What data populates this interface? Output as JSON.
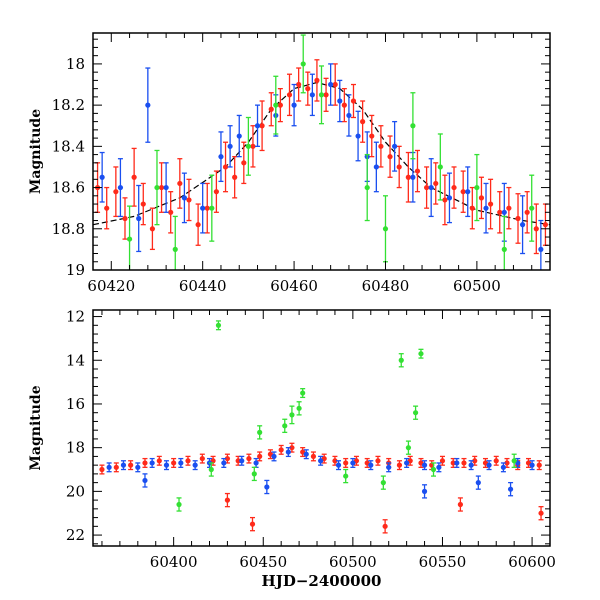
{
  "chart_data": [
    {
      "type": "scatter",
      "title": "",
      "xlabel": "",
      "ylabel": "Magnitude",
      "xlim": [
        60416,
        60516
      ],
      "ylim": [
        19.0,
        17.85
      ],
      "y_inverted": true,
      "grid": false,
      "legend": "none",
      "x_ticks": [
        60420,
        60440,
        60460,
        60480,
        60500
      ],
      "y_ticks": [
        18.0,
        18.2,
        18.4,
        18.6,
        18.8,
        19.0
      ],
      "x_tick_labels": [
        "60420",
        "60440",
        "60460",
        "60480",
        "60500"
      ],
      "y_tick_labels": [
        "18",
        "18.2",
        "18.4",
        "18.6",
        "18.8",
        "19"
      ],
      "model_curve": {
        "color": "#000000",
        "style": "dashed",
        "x": [
          60416,
          60425,
          60435,
          60445,
          60450,
          60455,
          60460,
          60465,
          60470,
          60475,
          60480,
          60485,
          60490,
          60500,
          60510,
          60516
        ],
        "y": [
          18.78,
          18.74,
          18.65,
          18.5,
          18.38,
          18.22,
          18.12,
          18.09,
          18.12,
          18.22,
          18.38,
          18.5,
          18.6,
          18.71,
          18.76,
          18.78
        ]
      },
      "series": [
        {
          "color": "#ff2a1a",
          "x": [
            60417,
            60419,
            60421,
            60423,
            60425,
            60427,
            60429,
            60431,
            60433,
            60435,
            60437,
            60439,
            60441,
            60443,
            60445,
            60447,
            60449,
            60451,
            60453,
            60455,
            60457,
            60459,
            60461,
            60463,
            60465,
            60467,
            60469,
            60471,
            60473,
            60475,
            60477,
            60479,
            60481,
            60483,
            60485,
            60487,
            60489,
            60491,
            60493,
            60495,
            60497,
            60499,
            60501,
            60503,
            60505,
            60507,
            60509,
            60511,
            60513,
            60515
          ],
          "y": [
            18.6,
            18.7,
            18.62,
            18.75,
            18.55,
            18.68,
            18.8,
            18.6,
            18.72,
            18.58,
            18.66,
            18.78,
            18.7,
            18.62,
            18.5,
            18.55,
            18.48,
            18.4,
            18.3,
            18.22,
            18.2,
            18.15,
            18.1,
            18.12,
            18.08,
            18.15,
            18.1,
            18.2,
            18.18,
            18.28,
            18.35,
            18.4,
            18.45,
            18.5,
            18.55,
            18.52,
            18.6,
            18.58,
            18.66,
            18.6,
            18.62,
            18.7,
            18.65,
            18.68,
            18.72,
            18.7,
            18.75,
            18.72,
            18.8,
            18.78
          ],
          "err": [
            0.12,
            0.1,
            0.12,
            0.1,
            0.14,
            0.1,
            0.1,
            0.12,
            0.1,
            0.12,
            0.1,
            0.1,
            0.12,
            0.1,
            0.12,
            0.1,
            0.1,
            0.1,
            0.12,
            0.08,
            0.08,
            0.1,
            0.08,
            0.08,
            0.1,
            0.08,
            0.1,
            0.08,
            0.08,
            0.1,
            0.1,
            0.1,
            0.1,
            0.1,
            0.12,
            0.1,
            0.1,
            0.1,
            0.12,
            0.1,
            0.1,
            0.1,
            0.1,
            0.12,
            0.1,
            0.1,
            0.12,
            0.1,
            0.12,
            0.1
          ]
        },
        {
          "color": "#1a4ff0",
          "x": [
            60418,
            60422,
            60426,
            60428,
            60432,
            60436,
            60440,
            60444,
            60446,
            60448,
            60452,
            60456,
            60460,
            60464,
            60468,
            60470,
            60472,
            60474,
            60476,
            60478,
            60482,
            60486,
            60490,
            60494,
            60498,
            60502,
            60506,
            60510,
            60514
          ],
          "y": [
            18.55,
            18.6,
            18.75,
            18.2,
            18.6,
            18.65,
            18.7,
            18.45,
            18.4,
            18.35,
            18.3,
            18.25,
            18.2,
            18.15,
            18.1,
            18.18,
            18.25,
            18.35,
            18.45,
            18.5,
            18.4,
            18.55,
            18.6,
            18.65,
            18.62,
            18.7,
            18.72,
            18.78,
            18.9
          ],
          "err": [
            0.12,
            0.14,
            0.16,
            0.18,
            0.12,
            0.12,
            0.12,
            0.12,
            0.1,
            0.1,
            0.1,
            0.1,
            0.1,
            0.1,
            0.1,
            0.1,
            0.1,
            0.12,
            0.12,
            0.12,
            0.12,
            0.12,
            0.14,
            0.12,
            0.12,
            0.12,
            0.14,
            0.14,
            0.14
          ]
        },
        {
          "color": "#33e033",
          "x": [
            60424,
            60430,
            60434,
            60442,
            60450,
            60456,
            60462,
            60466,
            60476,
            60480,
            60486,
            60492,
            60500,
            60506,
            60512
          ],
          "y": [
            18.85,
            18.6,
            18.9,
            18.7,
            18.4,
            18.2,
            18.0,
            18.15,
            18.6,
            18.8,
            18.3,
            18.5,
            18.6,
            18.9,
            18.7
          ],
          "err": [
            0.16,
            0.18,
            0.16,
            0.16,
            0.14,
            0.14,
            0.14,
            0.14,
            0.16,
            0.16,
            0.16,
            0.16,
            0.16,
            0.16,
            0.16
          ]
        }
      ]
    },
    {
      "type": "scatter",
      "title": "",
      "xlabel": "HJD−2400000",
      "ylabel": "Magnitude",
      "xlim": [
        60355,
        60610
      ],
      "ylim": [
        22.5,
        11.7
      ],
      "y_inverted": true,
      "grid": false,
      "legend": "none",
      "x_ticks": [
        60400,
        60450,
        60500,
        60550,
        60600
      ],
      "y_ticks": [
        12,
        14,
        16,
        18,
        20,
        22
      ],
      "x_tick_labels": [
        "60400",
        "60450",
        "60500",
        "60550",
        "60600"
      ],
      "y_tick_labels": [
        "12",
        "14",
        "16",
        "18",
        "20",
        "22"
      ],
      "series": [
        {
          "color": "#ff2a1a",
          "x": [
            60360,
            60368,
            60376,
            60384,
            60392,
            60400,
            60408,
            60416,
            60422,
            60430,
            60436,
            60442,
            60448,
            60454,
            60460,
            60466,
            60472,
            60478,
            60484,
            60490,
            60496,
            60502,
            60508,
            60514,
            60520,
            60526,
            60532,
            60538,
            60544,
            60550,
            60556,
            60562,
            60568,
            60574,
            60580,
            60586,
            60592,
            60598,
            60604,
            60430,
            60444,
            60518,
            60560,
            60605
          ],
          "y": [
            19.0,
            18.9,
            18.8,
            18.7,
            18.6,
            18.7,
            18.6,
            18.5,
            18.6,
            18.5,
            18.6,
            18.5,
            18.4,
            18.3,
            18.1,
            18.0,
            18.2,
            18.4,
            18.5,
            18.6,
            18.7,
            18.6,
            18.7,
            18.6,
            18.7,
            18.8,
            18.6,
            18.7,
            18.8,
            18.6,
            18.7,
            18.7,
            18.6,
            18.7,
            18.6,
            18.7,
            18.8,
            18.7,
            18.8,
            20.4,
            21.5,
            21.6,
            20.6,
            21.0
          ],
          "err": [
            0.2,
            0.2,
            0.2,
            0.2,
            0.2,
            0.2,
            0.2,
            0.2,
            0.2,
            0.2,
            0.2,
            0.2,
            0.2,
            0.2,
            0.2,
            0.2,
            0.2,
            0.2,
            0.2,
            0.2,
            0.2,
            0.2,
            0.2,
            0.2,
            0.2,
            0.2,
            0.2,
            0.2,
            0.2,
            0.2,
            0.2,
            0.2,
            0.2,
            0.2,
            0.2,
            0.2,
            0.2,
            0.2,
            0.2,
            0.3,
            0.3,
            0.3,
            0.3,
            0.3
          ]
        },
        {
          "color": "#1a4ff0",
          "x": [
            60364,
            60372,
            60380,
            60388,
            60396,
            60404,
            60412,
            60420,
            60428,
            60438,
            60446,
            60456,
            60464,
            60474,
            60482,
            60492,
            60500,
            60510,
            60520,
            60530,
            60540,
            60548,
            60558,
            60566,
            60576,
            60584,
            60592,
            60600,
            60384,
            60452,
            60540,
            60570,
            60588
          ],
          "y": [
            18.9,
            18.8,
            18.9,
            18.7,
            18.8,
            18.7,
            18.8,
            18.7,
            18.7,
            18.6,
            18.7,
            18.4,
            18.2,
            18.3,
            18.6,
            18.8,
            18.7,
            18.8,
            18.9,
            18.7,
            18.8,
            18.9,
            18.7,
            18.8,
            18.8,
            18.9,
            18.7,
            18.8,
            19.5,
            19.8,
            20.0,
            19.6,
            19.9
          ],
          "err": [
            0.2,
            0.2,
            0.2,
            0.2,
            0.2,
            0.2,
            0.2,
            0.2,
            0.2,
            0.2,
            0.2,
            0.2,
            0.2,
            0.2,
            0.2,
            0.2,
            0.2,
            0.2,
            0.2,
            0.2,
            0.2,
            0.2,
            0.2,
            0.2,
            0.2,
            0.2,
            0.2,
            0.2,
            0.3,
            0.3,
            0.3,
            0.3,
            0.3
          ]
        },
        {
          "color": "#33e033",
          "x": [
            60425,
            60527,
            60538,
            60535,
            60531,
            60466,
            60470,
            60472,
            60448,
            60462,
            60403,
            60421,
            60445,
            60496,
            60517,
            60545,
            60590
          ],
          "y": [
            12.4,
            14.0,
            13.7,
            16.4,
            18.0,
            16.5,
            16.2,
            15.5,
            17.3,
            17.0,
            20.6,
            19.0,
            19.2,
            19.3,
            19.6,
            19.0,
            18.6
          ],
          "err": [
            0.2,
            0.3,
            0.2,
            0.3,
            0.3,
            0.4,
            0.3,
            0.2,
            0.3,
            0.3,
            0.3,
            0.3,
            0.3,
            0.3,
            0.3,
            0.3,
            0.3
          ]
        }
      ]
    }
  ]
}
